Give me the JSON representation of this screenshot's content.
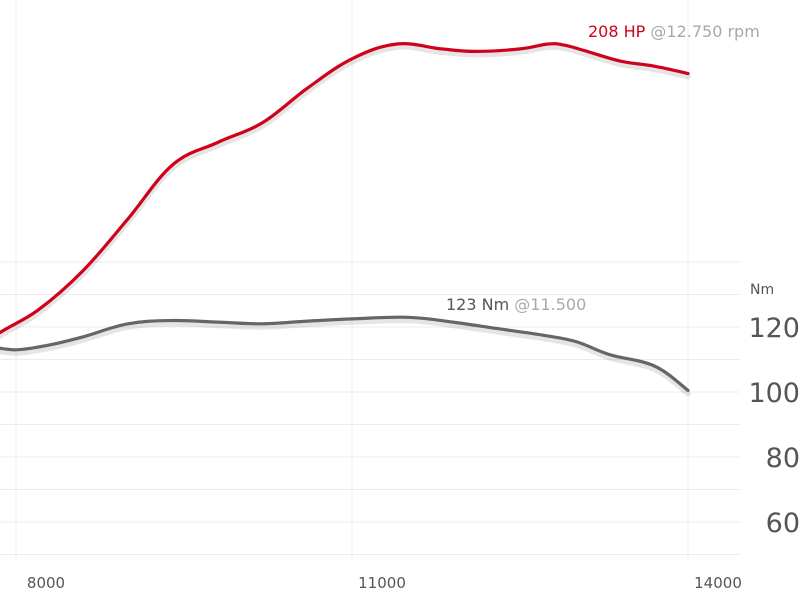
{
  "chart_data": {
    "type": "line",
    "xlim": [
      7500,
      14800
    ],
    "x_ticks": [
      8000,
      11000,
      14000
    ],
    "x_tick_labels": [
      "8000",
      "11000",
      "14000"
    ],
    "ylabel": "Nm",
    "y_ticks": [
      60,
      80,
      100,
      120
    ],
    "y_tick_labels": [
      "60",
      "80",
      "100",
      "120"
    ],
    "torque_ylim": [
      50,
      130
    ],
    "power_ylim": [
      0,
      240
    ],
    "grid": true,
    "series": [
      {
        "name": "HP",
        "color": "#d0021b",
        "axis": "power",
        "x": [
          7500,
          7800,
          8200,
          8600,
          9000,
          9400,
          9800,
          10200,
          10600,
          11000,
          11400,
          11800,
          12100,
          12500,
          12750,
          12900,
          13100,
          13400,
          13700,
          14000
        ],
        "y": [
          76,
          89,
          100,
          116,
          137,
          159,
          168,
          176,
          190,
          202,
          208,
          206,
          205,
          206,
          208,
          207.5,
          205,
          201,
          199,
          196
        ]
      },
      {
        "name": "Nm",
        "color": "#666666",
        "axis": "torque",
        "x": [
          7500,
          7700,
          8000,
          8300,
          8600,
          9000,
          9400,
          9800,
          10200,
          10600,
          11000,
          11500,
          11900,
          12300,
          12700,
          13000,
          13300,
          13700,
          14000
        ],
        "y": [
          112,
          114,
          113,
          114.5,
          117,
          121,
          122,
          121.5,
          121,
          121.8,
          122.5,
          123,
          121.5,
          119.5,
          117.5,
          115.5,
          111.5,
          108,
          100.5
        ]
      }
    ],
    "annotations": [
      {
        "series": "HP",
        "value": "208 HP",
        "detail": "@12.750 rpm",
        "x": 12750,
        "y": 208
      },
      {
        "series": "Nm",
        "value": "123 Nm",
        "detail": "@11.500",
        "x": 11500,
        "y": 123
      }
    ]
  }
}
